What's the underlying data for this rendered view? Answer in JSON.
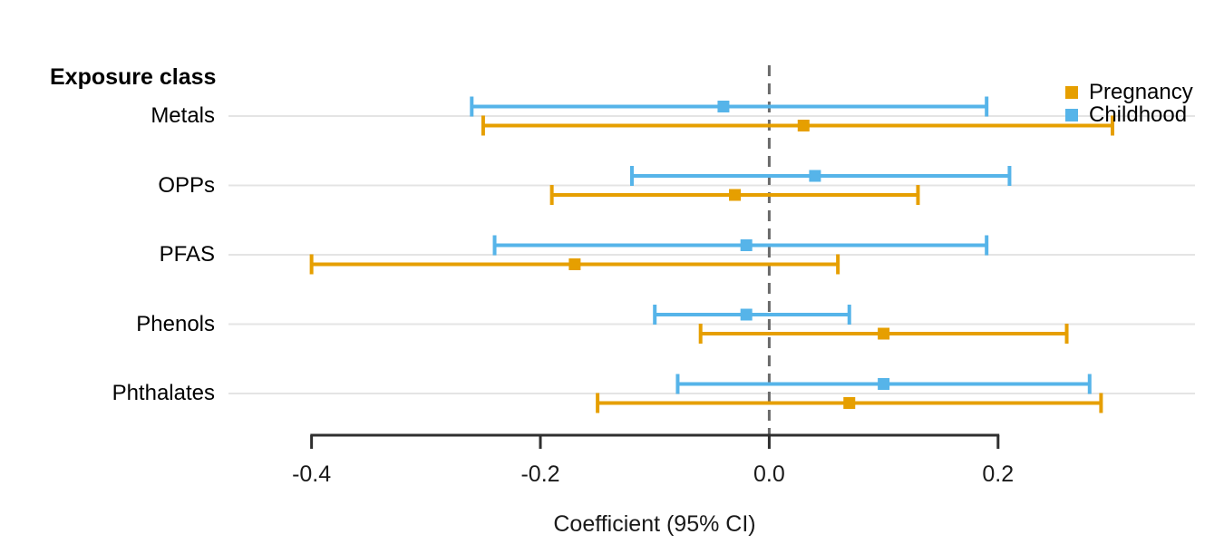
{
  "header": {
    "title": "Exposure class"
  },
  "legend": {
    "items": [
      {
        "label": "Pregnancy",
        "color": "#E69F00"
      },
      {
        "label": "Childhood",
        "color": "#56B4E9"
      }
    ]
  },
  "axis": {
    "title": "Coefficient (95% CI)",
    "ticks": [
      -0.4,
      -0.2,
      0.0,
      0.2
    ],
    "tick_labels": [
      "-0.4",
      "-0.2",
      "0.0",
      "0.2"
    ],
    "zero_reference_line": 0.0
  },
  "colors": {
    "pregnancy": "#E69F00",
    "childhood": "#56B4E9",
    "gridline": "#E4E4E4",
    "zero_line": "#6A6A6A",
    "axis_line": "#2F2F2F"
  },
  "chart_data": {
    "type": "scatter",
    "subtype": "forest-plot-horizontal-error-bars",
    "title": "",
    "xlabel": "Coefficient (95% CI)",
    "ylabel": "Exposure class",
    "xlim": [
      -0.4726,
      0.3721
    ],
    "grid": "horizontal-light",
    "legend_position": "top-right",
    "categories": [
      "Metals",
      "OPPs",
      "PFAS",
      "Phenols",
      "Phthalates"
    ],
    "series": [
      {
        "name": "Pregnancy",
        "color": "#E69F00",
        "estimates": [
          0.03,
          -0.03,
          -0.17,
          0.1,
          0.07
        ],
        "ci_low": [
          -0.25,
          -0.19,
          -0.4,
          -0.06,
          -0.15
        ],
        "ci_high": [
          0.3,
          0.13,
          0.06,
          0.26,
          0.29
        ]
      },
      {
        "name": "Childhood",
        "color": "#56B4E9",
        "estimates": [
          -0.04,
          0.04,
          -0.02,
          -0.02,
          0.1
        ],
        "ci_low": [
          -0.26,
          -0.12,
          -0.24,
          -0.1,
          -0.08
        ],
        "ci_high": [
          0.19,
          0.21,
          0.19,
          0.07,
          0.28
        ]
      }
    ]
  }
}
